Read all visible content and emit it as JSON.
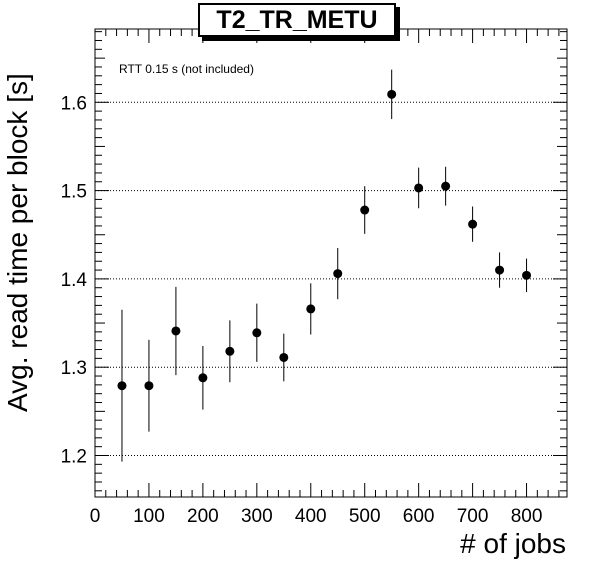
{
  "chart_data": {
    "type": "scatter",
    "title": "T2_TR_METU",
    "annotation": "RTT 0.15 s (not included)",
    "xlabel": "# of jobs",
    "ylabel": "Avg. read time per block [s]",
    "xlim": [
      0,
      875
    ],
    "ylim": [
      1.153,
      1.683
    ],
    "x_ticks": [
      0,
      100,
      200,
      300,
      400,
      500,
      600,
      700,
      800
    ],
    "y_ticks": [
      1.2,
      1.3,
      1.4,
      1.5,
      1.6
    ],
    "x_tick_labels": [
      "0",
      "100",
      "200",
      "300",
      "400",
      "500",
      "600",
      "700",
      "800"
    ],
    "y_tick_labels": [
      "1.2",
      "1.3",
      "1.4",
      "1.5",
      "1.6"
    ],
    "grid": "horizontal dotted at major y ticks",
    "series": [
      {
        "x": [
          50,
          100,
          150,
          200,
          250,
          300,
          350,
          400,
          450,
          500,
          550,
          600,
          650,
          700,
          750,
          800
        ],
        "y": [
          1.279,
          1.279,
          1.341,
          1.288,
          1.318,
          1.339,
          1.311,
          1.366,
          1.406,
          1.478,
          1.609,
          1.503,
          1.505,
          1.462,
          1.41,
          1.404
        ],
        "err": [
          0.086,
          0.052,
          0.05,
          0.036,
          0.035,
          0.033,
          0.027,
          0.029,
          0.029,
          0.027,
          0.028,
          0.023,
          0.022,
          0.02,
          0.02,
          0.019
        ]
      }
    ]
  }
}
